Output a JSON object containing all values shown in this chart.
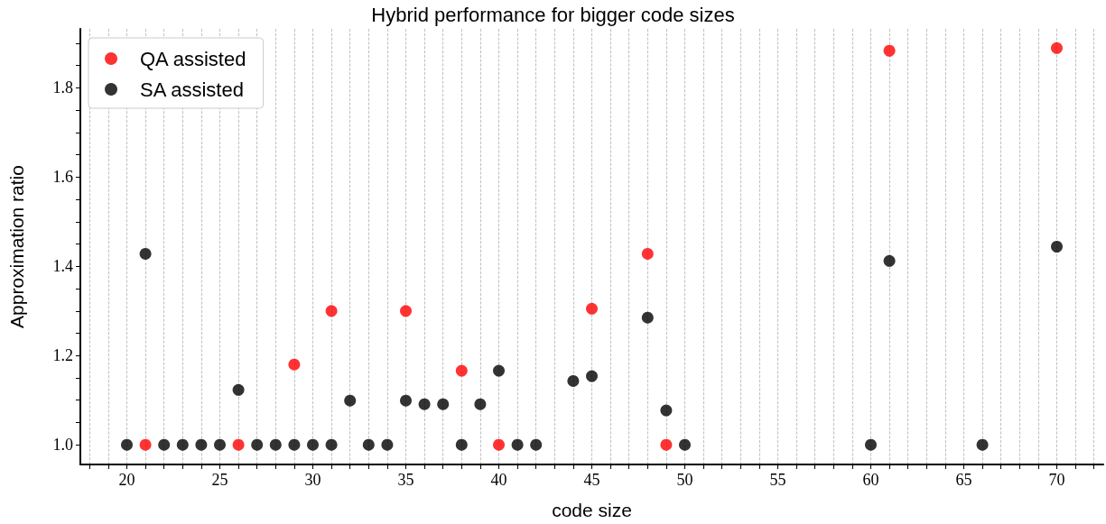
{
  "chart_data": {
    "type": "scatter",
    "title": "Hybrid performance for bigger code sizes",
    "xlabel": "code size",
    "ylabel": "Approximation ratio",
    "xlim": [
      17.5,
      72.5
    ],
    "ylim": [
      0.956,
      1.932
    ],
    "xticks": [
      {
        "value": 18,
        "label": null
      },
      {
        "value": 19,
        "label": null
      },
      20,
      {
        "value": 21,
        "label": null
      },
      {
        "value": 22,
        "label": null
      },
      {
        "value": 23,
        "label": null
      },
      {
        "value": 24,
        "label": null
      },
      25,
      {
        "value": 26,
        "label": null
      },
      {
        "value": 27,
        "label": null
      },
      {
        "value": 28,
        "label": null
      },
      {
        "value": 29,
        "label": null
      },
      30,
      {
        "value": 31,
        "label": null
      },
      {
        "value": 32,
        "label": null
      },
      {
        "value": 33,
        "label": null
      },
      {
        "value": 34,
        "label": null
      },
      35,
      {
        "value": 36,
        "label": null
      },
      {
        "value": 37,
        "label": null
      },
      {
        "value": 38,
        "label": null
      },
      {
        "value": 39,
        "label": null
      },
      40,
      {
        "value": 41,
        "label": null
      },
      {
        "value": 42,
        "label": null
      },
      {
        "value": 43,
        "label": null
      },
      {
        "value": 44,
        "label": null
      },
      45,
      {
        "value": 46,
        "label": null
      },
      {
        "value": 47,
        "label": null
      },
      {
        "value": 48,
        "label": null
      },
      {
        "value": 49,
        "label": null
      },
      50,
      {
        "value": 51,
        "label": null
      },
      {
        "value": 52,
        "label": null
      },
      {
        "value": 53,
        "label": null
      },
      {
        "value": 54,
        "label": null
      },
      55,
      {
        "value": 56,
        "label": null
      },
      {
        "value": 57,
        "label": null
      },
      {
        "value": 58,
        "label": null
      },
      {
        "value": 59,
        "label": null
      },
      60,
      {
        "value": 61,
        "label": null
      },
      {
        "value": 62,
        "label": null
      },
      {
        "value": 63,
        "label": null
      },
      {
        "value": 64,
        "label": null
      },
      65,
      {
        "value": 66,
        "label": null
      },
      {
        "value": 67,
        "label": null
      },
      {
        "value": 68,
        "label": null
      },
      {
        "value": 69,
        "label": null
      },
      70,
      {
        "value": 71,
        "label": null
      },
      {
        "value": 72,
        "label": null
      }
    ],
    "yticks": [
      {
        "value": 1.0,
        "label": "1.0"
      },
      {
        "value": 1.05,
        "label": null
      },
      {
        "value": 1.1,
        "label": null
      },
      {
        "value": 1.15,
        "label": null
      },
      {
        "value": 1.2,
        "label": "1.2"
      },
      {
        "value": 1.25,
        "label": null
      },
      {
        "value": 1.3,
        "label": null
      },
      {
        "value": 1.35,
        "label": null
      },
      {
        "value": 1.4,
        "label": "1.4"
      },
      {
        "value": 1.45,
        "label": null
      },
      {
        "value": 1.5,
        "label": null
      },
      {
        "value": 1.55,
        "label": null
      },
      {
        "value": 1.6,
        "label": "1.6"
      },
      {
        "value": 1.65,
        "label": null
      },
      {
        "value": 1.7,
        "label": null
      },
      {
        "value": 1.75,
        "label": null
      },
      {
        "value": 1.8,
        "label": "1.8"
      },
      {
        "value": 1.85,
        "label": null
      },
      {
        "value": 1.9,
        "label": null
      }
    ],
    "grid": "x",
    "legend": "top left",
    "marker": "circle",
    "series": [
      {
        "name": "QA assisted",
        "color": "#ff0000",
        "x": [
          21,
          26,
          29,
          31,
          35,
          38,
          40,
          45,
          48,
          49,
          61,
          70
        ],
        "values": [
          1.0,
          1.0,
          1.18,
          1.3,
          1.3,
          1.166,
          1.0,
          1.305,
          1.428,
          1.0,
          1.883,
          1.889
        ]
      },
      {
        "name": "SA assisted",
        "color": "#000000",
        "x": [
          20,
          21,
          22,
          23,
          24,
          25,
          26,
          27,
          28,
          29,
          30,
          31,
          32,
          33,
          34,
          35,
          36,
          37,
          38,
          39,
          40,
          41,
          42,
          44,
          45,
          48,
          49,
          50,
          60,
          61,
          66,
          70
        ],
        "values": [
          1.0,
          1.428,
          1.0,
          1.0,
          1.0,
          1.0,
          1.123,
          1.0,
          1.0,
          1.0,
          1.0,
          1.0,
          1.099,
          1.0,
          1.0,
          1.099,
          1.091,
          1.091,
          1.0,
          1.091,
          1.166,
          1.0,
          1.0,
          1.143,
          1.154,
          1.285,
          1.077,
          1.0,
          1.0,
          1.412,
          1.0,
          1.444
        ]
      }
    ]
  }
}
